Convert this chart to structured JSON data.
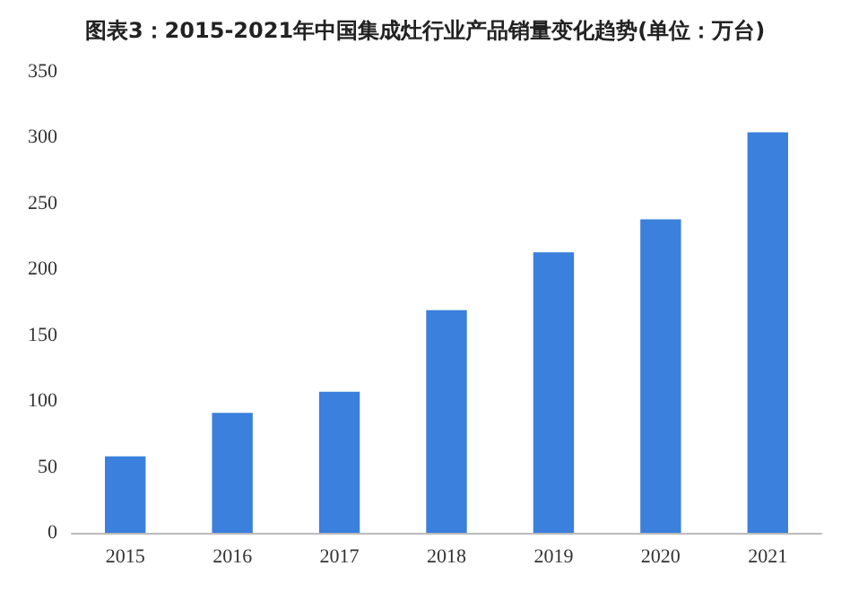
{
  "chart_data": {
    "type": "bar",
    "title": "图表3：2015-2021年中国集成灶行业产品销量变化趋势(单位：万台)",
    "categories": [
      "2015",
      "2016",
      "2017",
      "2018",
      "2019",
      "2020",
      "2021"
    ],
    "values": [
      58,
      91,
      107,
      169,
      213,
      238,
      304
    ],
    "color": "#3a80dc",
    "ylim": [
      0,
      350
    ],
    "yticks": [
      0,
      50,
      100,
      150,
      200,
      250,
      300,
      350
    ],
    "grid": false
  }
}
